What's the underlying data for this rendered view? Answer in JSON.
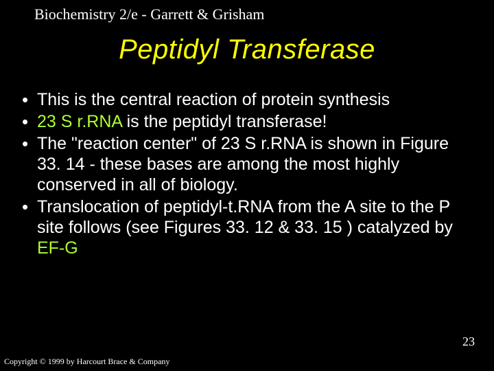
{
  "header": "Biochemistry 2/e - Garrett & Grisham",
  "title": "Peptidyl Transferase",
  "bullets": [
    {
      "pre": "This is the central reaction of protein synthesis",
      "hl": "",
      "post": ""
    },
    {
      "pre": "",
      "hl": "23 S r.RNA",
      "post": " is the peptidyl transferase!"
    },
    {
      "pre": "The \"reaction center\" of 23 S r.RNA is shown in Figure 33. 14 - these bases are among the most highly conserved in all of biology.",
      "hl": "",
      "post": ""
    },
    {
      "pre": "Translocation of peptidyl-t.RNA from the A site to the P site follows (see Figures 33. 12 & 33. 15 ) catalyzed by ",
      "hl": "EF-G",
      "post": ""
    }
  ],
  "pageNumber": "23",
  "copyright": "Copyright © 1999 by Harcourt Brace & Company",
  "bulletGlyph": "•"
}
